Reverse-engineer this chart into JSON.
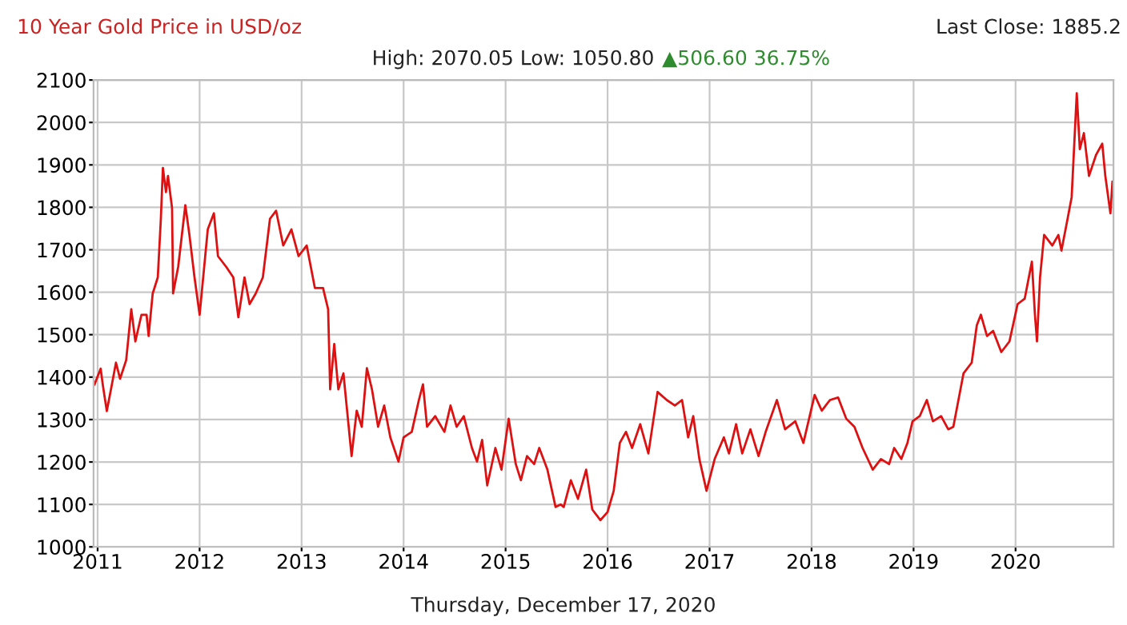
{
  "chart_data": {
    "type": "line",
    "title": "10 Year Gold Price in USD/oz",
    "subtitle": "High: 2070.05 Low: 1050.80",
    "annotations": [
      "▲506.60 36.75%",
      "Last Close: 1885.2",
      "Thursday, December 17, 2020"
    ],
    "x": [
      2010.97,
      2011.03,
      2011.05,
      2011.09,
      2011.13,
      2011.18,
      2011.22,
      2011.28,
      2011.33,
      2011.37,
      2011.43,
      2011.48,
      2011.5,
      2011.54,
      2011.59,
      2011.62,
      2011.64,
      2011.67,
      2011.69,
      2011.73,
      2011.74,
      2011.79,
      2011.86,
      2011.9,
      2011.95,
      2012.0,
      2012.08,
      2012.14,
      2012.18,
      2012.26,
      2012.33,
      2012.38,
      2012.44,
      2012.49,
      2012.55,
      2012.62,
      2012.69,
      2012.75,
      2012.82,
      2012.9,
      2012.97,
      2013.05,
      2013.13,
      2013.21,
      2013.26,
      2013.28,
      2013.32,
      2013.36,
      2013.41,
      2013.49,
      2013.54,
      2013.59,
      2013.64,
      2013.69,
      2013.75,
      2013.81,
      2013.87,
      2013.95,
      2014.0,
      2014.08,
      2014.15,
      2014.19,
      2014.23,
      2014.31,
      2014.4,
      2014.46,
      2014.52,
      2014.59,
      2014.67,
      2014.72,
      2014.77,
      2014.82,
      2014.9,
      2014.96,
      2015.03,
      2015.1,
      2015.15,
      2015.21,
      2015.28,
      2015.33,
      2015.41,
      2015.49,
      2015.54,
      2015.57,
      2015.64,
      2015.71,
      2015.79,
      2015.85,
      2015.93,
      2016.0,
      2016.06,
      2016.12,
      2016.18,
      2016.24,
      2016.32,
      2016.4,
      2016.49,
      2016.58,
      2016.66,
      2016.73,
      2016.79,
      2016.84,
      2016.9,
      2016.97,
      2017.05,
      2017.14,
      2017.19,
      2017.26,
      2017.32,
      2017.4,
      2017.48,
      2017.55,
      2017.66,
      2017.74,
      2017.84,
      2017.92,
      2018.03,
      2018.1,
      2018.18,
      2018.26,
      2018.34,
      2018.42,
      2018.5,
      2018.6,
      2018.68,
      2018.76,
      2018.81,
      2018.88,
      2018.94,
      2018.99,
      2019.06,
      2019.13,
      2019.19,
      2019.27,
      2019.34,
      2019.39,
      2019.44,
      2019.49,
      2019.57,
      2019.62,
      2019.66,
      2019.72,
      2019.78,
      2019.86,
      2019.94,
      2020.02,
      2020.09,
      2020.16,
      2020.19,
      2020.21,
      2020.24,
      2020.28,
      2020.36,
      2020.42,
      2020.45,
      2020.51,
      2020.55,
      2020.6,
      2020.63,
      2020.67,
      2020.72,
      2020.79,
      2020.85,
      2020.88,
      2020.93,
      2020.95,
      2020.96
    ],
    "series": [
      {
        "color": "#dd1111",
        "values": [
          1383,
          1420,
          1383,
          1320,
          1370,
          1434,
          1396,
          1440,
          1560,
          1484,
          1547,
          1547,
          1497,
          1597,
          1635,
          1773,
          1893,
          1836,
          1874,
          1798,
          1597,
          1660,
          1805,
          1735,
          1635,
          1547,
          1748,
          1786,
          1685,
          1660,
          1635,
          1541,
          1635,
          1572,
          1597,
          1635,
          1773,
          1792,
          1710,
          1748,
          1685,
          1710,
          1610,
          1610,
          1560,
          1371,
          1478,
          1371,
          1409,
          1214,
          1321,
          1283,
          1421,
          1371,
          1283,
          1333,
          1258,
          1201,
          1258,
          1271,
          1346,
          1383,
          1283,
          1308,
          1271,
          1333,
          1283,
          1308,
          1233,
          1201,
          1252,
          1145,
          1233,
          1182,
          1302,
          1195,
          1157,
          1214,
          1195,
          1233,
          1182,
          1094,
          1100,
          1094,
          1157,
          1113,
          1182,
          1088,
          1063,
          1082,
          1132,
          1245,
          1271,
          1233,
          1289,
          1220,
          1365,
          1346,
          1333,
          1346,
          1258,
          1308,
          1207,
          1132,
          1207,
          1258,
          1220,
          1289,
          1220,
          1277,
          1214,
          1271,
          1346,
          1277,
          1296,
          1245,
          1358,
          1321,
          1346,
          1352,
          1302,
          1283,
          1233,
          1182,
          1207,
          1195,
          1233,
          1207,
          1245,
          1296,
          1308,
          1346,
          1296,
          1308,
          1277,
          1283,
          1346,
          1409,
          1434,
          1522,
          1547,
          1497,
          1509,
          1459,
          1484,
          1572,
          1585,
          1672,
          1547,
          1484,
          1635,
          1735,
          1710,
          1735,
          1698,
          1773,
          1824,
          2069,
          1937,
          1975,
          1874,
          1924,
          1950,
          1874,
          1786,
          1861,
          1842
        ]
      }
    ],
    "xlim": [
      2010.96,
      2020.96
    ],
    "xticks": [
      2011,
      2012,
      2013,
      2014,
      2015,
      2016,
      2017,
      2018,
      2019,
      2020
    ],
    "ylim": [
      1000,
      2100
    ],
    "yticks": [
      1000,
      1100,
      1200,
      1300,
      1400,
      1500,
      1600,
      1700,
      1800,
      1900,
      2000,
      2100
    ],
    "grid": true,
    "legend": false
  }
}
